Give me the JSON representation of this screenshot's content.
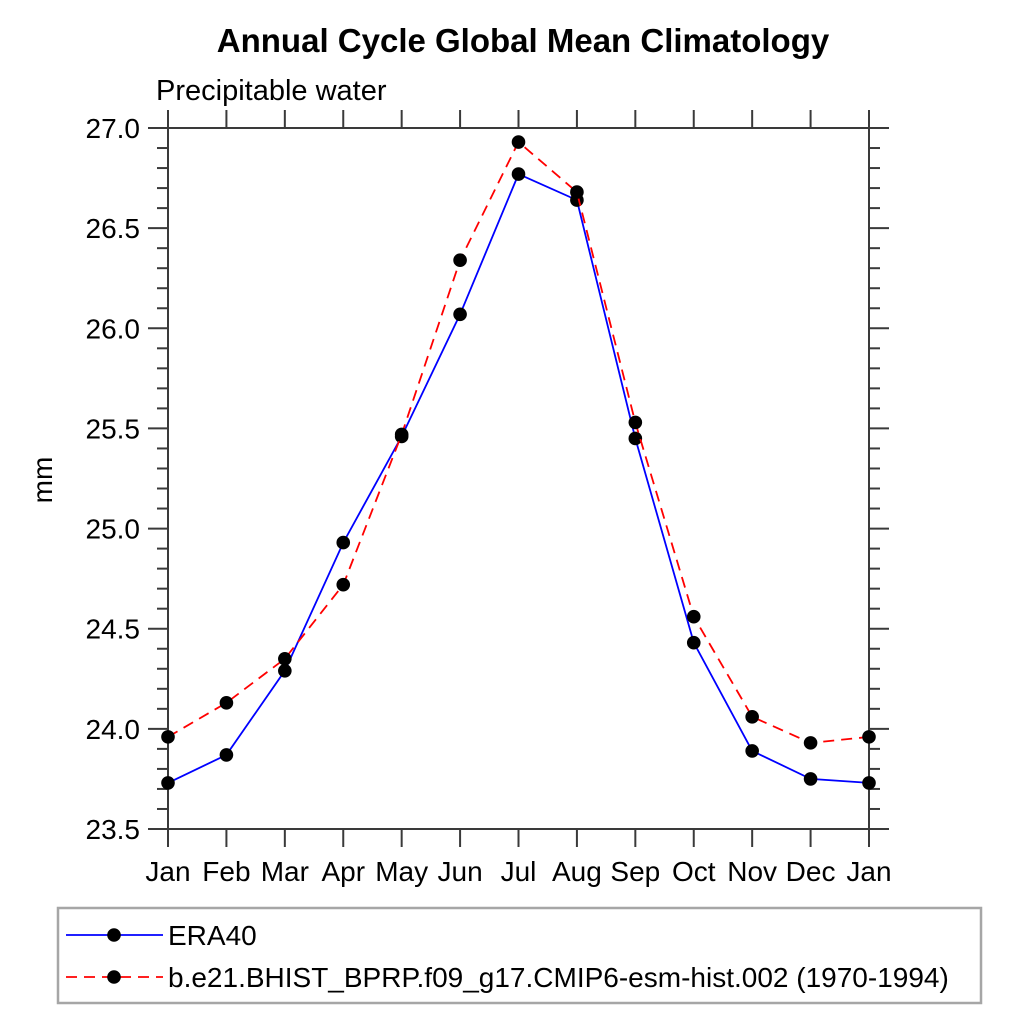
{
  "chart_data": {
    "type": "line",
    "title": "Annual Cycle Global Mean Climatology",
    "subtitle": "Precipitable water",
    "ylabel": "mm",
    "xlabel": "",
    "ylim": [
      23.5,
      27.0
    ],
    "y_major_step": 0.5,
    "y_minor_step": 0.1,
    "grid": false,
    "legend_position": "bottom-left-box",
    "categories": [
      "Jan",
      "Feb",
      "Mar",
      "Apr",
      "May",
      "Jun",
      "Jul",
      "Aug",
      "Sep",
      "Oct",
      "Nov",
      "Dec",
      "Jan"
    ],
    "series": [
      {
        "name": "ERA40",
        "color": "#0000ff",
        "line_style": "solid",
        "marker": "filled-circle",
        "marker_color": "#000000",
        "values": [
          23.73,
          23.87,
          24.29,
          24.93,
          25.46,
          26.07,
          26.77,
          26.64,
          25.45,
          24.43,
          23.89,
          23.75,
          23.73
        ]
      },
      {
        "name": "b.e21.BHIST_BPRP.f09_g17.CMIP6-esm-hist.002 (1970-1994)",
        "color": "#ff0000",
        "line_style": "dashed",
        "marker": "filled-circle",
        "marker_color": "#000000",
        "values": [
          23.96,
          24.13,
          24.35,
          24.72,
          25.47,
          26.34,
          26.93,
          26.68,
          25.53,
          24.56,
          24.06,
          23.93,
          23.96
        ]
      }
    ]
  },
  "colors": {
    "axis": "#3a3a3a",
    "text": "#000000",
    "legend_border": "#a6a6a6",
    "background": "#ffffff"
  }
}
